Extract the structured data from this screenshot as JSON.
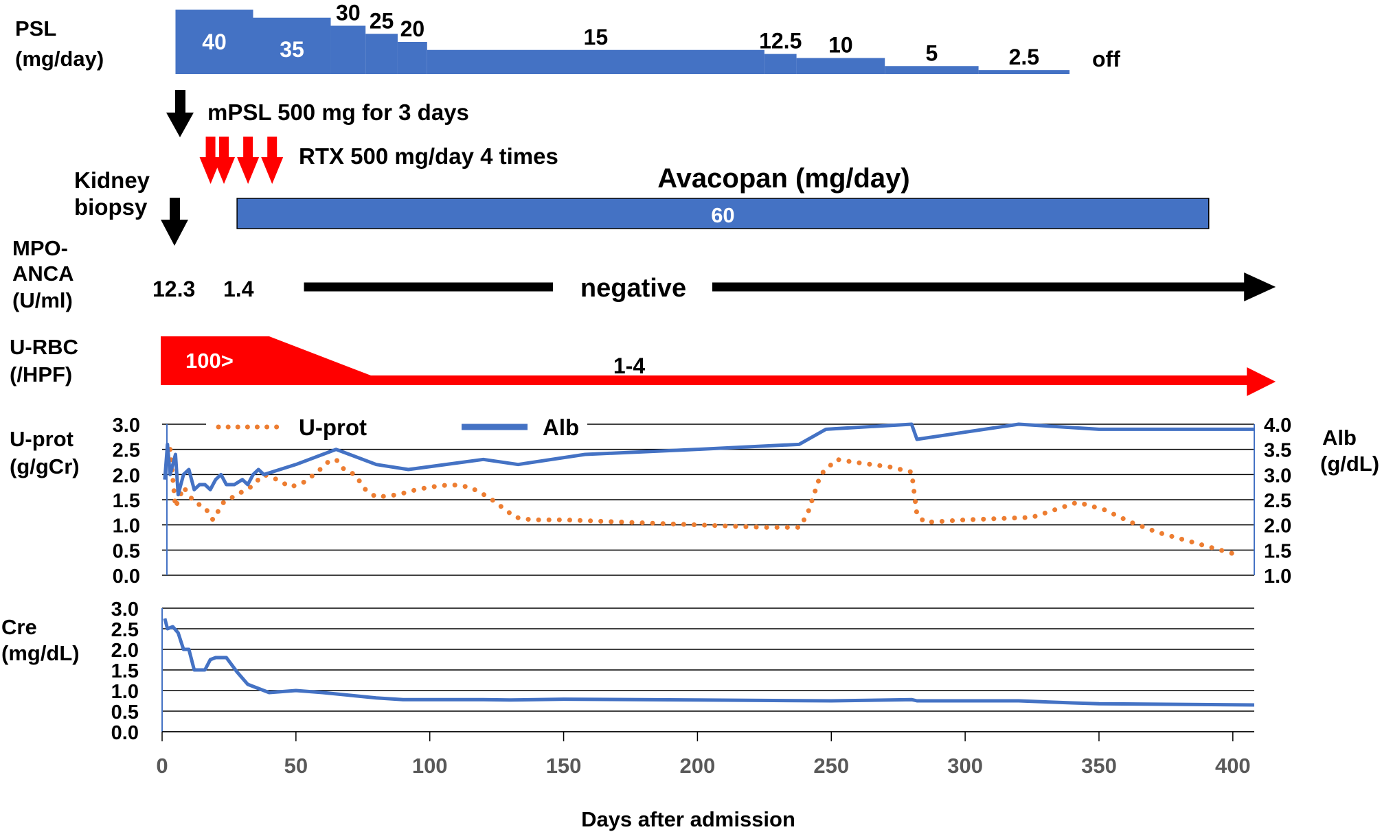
{
  "colors": {
    "blue": "#4472C4",
    "red": "#FF0000",
    "orange": "#ED7D31",
    "black": "#000000",
    "white": "#FFFFFF"
  },
  "x_axis": {
    "label": "Days after admission",
    "ticks": [
      0,
      50,
      100,
      150,
      200,
      250,
      300,
      350,
      400
    ],
    "range": [
      0,
      408
    ]
  },
  "psl": {
    "label_line1": "PSL",
    "label_line2": "(mg/day)",
    "off_label": "off",
    "steps": [
      {
        "label": "40",
        "dose": 40,
        "start": 5,
        "end": 34
      },
      {
        "label": "35",
        "dose": 35,
        "start": 34,
        "end": 63
      },
      {
        "label": "30",
        "dose": 30,
        "start": 63,
        "end": 76
      },
      {
        "label": "25",
        "dose": 25,
        "start": 76,
        "end": 88
      },
      {
        "label": "20",
        "dose": 20,
        "start": 88,
        "end": 99
      },
      {
        "label": "15",
        "dose": 15,
        "start": 99,
        "end": 225
      },
      {
        "label": "12.5",
        "dose": 12.5,
        "start": 225,
        "end": 237
      },
      {
        "label": "10",
        "dose": 10,
        "start": 237,
        "end": 270
      },
      {
        "label": "5",
        "dose": 5,
        "start": 270,
        "end": 305
      },
      {
        "label": "2.5",
        "dose": 2.5,
        "start": 305,
        "end": 339
      }
    ]
  },
  "events": {
    "mpsl": {
      "text": "mPSL 500 mg for 3 days",
      "day": 7
    },
    "rtx": {
      "text": "RTX 500 mg/day 4 times",
      "days": [
        14,
        19,
        28,
        37
      ]
    },
    "biopsy": {
      "label_line1": "Kidney",
      "label_line2": "biopsy",
      "day": 5
    }
  },
  "avacopan": {
    "title": "Avacopan (mg/day)",
    "dose": "60",
    "start": 28,
    "end": 391
  },
  "mpo_anca": {
    "label_lines": [
      "MPO-",
      "ANCA",
      "(U/ml)"
    ],
    "values": [
      {
        "text": "12.3",
        "day": 5
      },
      {
        "text": "1.4",
        "day": 30
      }
    ],
    "negative_text": "negative",
    "arrow_start": 53,
    "arrow_end": 416
  },
  "u_rbc": {
    "label_lines": [
      "U-RBC",
      "(/HPF)"
    ],
    "high_text": "100>",
    "low_text": "1-4",
    "high_end": 40,
    "taper_end": 78,
    "arrow_end": 416
  },
  "chart_data": [
    {
      "type": "line",
      "title": "",
      "xlabel": "Days after admission",
      "ylabel": "U-prot (g/gCr)",
      "ylabel_lines": [
        "U-prot",
        "(g/gCr)"
      ],
      "ylim": [
        0,
        3
      ],
      "yticks": [
        "0.0",
        "0.5",
        "1.0",
        "1.5",
        "2.0",
        "2.5",
        "3.0"
      ],
      "y2label": "Alb (g/dL)",
      "y2label_lines": [
        "Alb",
        "(g/dL)"
      ],
      "y2lim": [
        1,
        4
      ],
      "y2ticks": [
        "1.0",
        "1.5",
        "2.0",
        "2.5",
        "3.0",
        "3.5",
        "4.0"
      ],
      "legend": [
        "U-prot",
        "Alb"
      ],
      "series": [
        {
          "name": "U-prot",
          "axis": "left",
          "style": "dotted",
          "x": [
            3,
            5,
            8,
            12,
            16,
            19,
            23,
            28,
            33,
            38,
            43,
            48,
            53,
            58,
            62,
            65,
            68,
            72,
            76,
            80,
            88,
            95,
            100,
            108,
            115,
            122,
            127,
            132,
            138,
            150,
            200,
            225,
            238,
            241,
            246,
            252,
            258,
            265,
            272,
            280,
            282,
            285,
            300,
            325,
            342,
            352,
            362,
            372,
            382,
            392,
            402
          ],
          "values": [
            2.5,
            1.35,
            1.75,
            1.45,
            1.35,
            1.1,
            1.45,
            1.6,
            1.75,
            2.0,
            1.9,
            1.75,
            1.85,
            2.05,
            2.25,
            2.3,
            2.1,
            2.0,
            1.7,
            1.55,
            1.6,
            1.7,
            1.75,
            1.8,
            1.75,
            1.55,
            1.35,
            1.15,
            1.1,
            1.1,
            1.0,
            0.95,
            0.95,
            1.2,
            2.0,
            2.3,
            2.25,
            2.2,
            2.15,
            2.05,
            1.2,
            1.05,
            1.1,
            1.15,
            1.45,
            1.3,
            1.05,
            0.85,
            0.7,
            0.55,
            0.4
          ]
        },
        {
          "name": "Alb",
          "axis": "right",
          "style": "solid",
          "x": [
            1,
            2,
            3,
            5,
            6,
            8,
            10,
            12,
            14,
            16,
            18,
            20,
            22,
            24,
            27,
            30,
            32,
            34,
            36,
            38,
            50,
            60,
            65,
            70,
            80,
            92,
            120,
            133,
            158,
            200,
            238,
            248,
            280,
            282,
            320,
            350,
            408
          ],
          "values": [
            2.9,
            3.6,
            3.0,
            3.4,
            2.6,
            3.0,
            3.1,
            2.7,
            2.8,
            2.8,
            2.7,
            2.9,
            3.0,
            2.8,
            2.8,
            2.9,
            2.8,
            3.0,
            3.1,
            3.0,
            3.2,
            3.4,
            3.5,
            3.4,
            3.2,
            3.1,
            3.3,
            3.2,
            3.4,
            3.5,
            3.6,
            3.9,
            4.0,
            3.7,
            4.0,
            3.9,
            3.9
          ]
        }
      ]
    },
    {
      "type": "line",
      "title": "",
      "xlabel": "Days after admission",
      "ylabel": "Cre (mg/dL)",
      "ylabel_lines": [
        "Cre",
        "(mg/dL)"
      ],
      "ylim": [
        0,
        3
      ],
      "yticks": [
        "0.0",
        "0.5",
        "1.0",
        "1.5",
        "2.0",
        "2.5",
        "3.0"
      ],
      "series": [
        {
          "name": "Cre",
          "style": "solid",
          "x": [
            1,
            2,
            4,
            6,
            8,
            10,
            12,
            16,
            18,
            20,
            24,
            28,
            32,
            36,
            40,
            50,
            60,
            80,
            90,
            120,
            130,
            150,
            200,
            250,
            280,
            282,
            320,
            340,
            350,
            408
          ],
          "values": [
            2.75,
            2.5,
            2.55,
            2.4,
            2.0,
            2.0,
            1.5,
            1.5,
            1.75,
            1.8,
            1.8,
            1.45,
            1.15,
            1.05,
            0.95,
            1.0,
            0.95,
            0.82,
            0.78,
            0.78,
            0.77,
            0.79,
            0.77,
            0.75,
            0.78,
            0.75,
            0.75,
            0.7,
            0.68,
            0.65
          ]
        }
      ]
    }
  ]
}
